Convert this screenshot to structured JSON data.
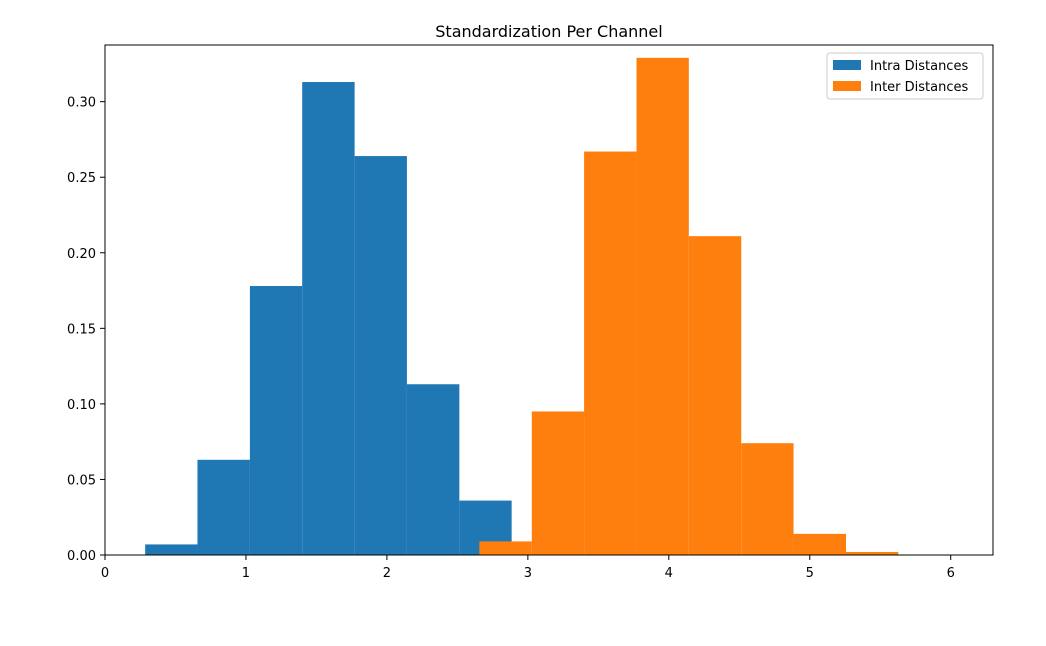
{
  "chart_data": {
    "type": "bar",
    "title": "Standardization Per Channel",
    "xlabel": "",
    "ylabel": "",
    "xlim": [
      0,
      6.3
    ],
    "ylim": [
      0,
      0.3375
    ],
    "xticks": [
      0,
      1,
      2,
      3,
      4,
      5,
      6
    ],
    "yticks": [
      0.0,
      0.05,
      0.1,
      0.15,
      0.2,
      0.25,
      0.3
    ],
    "xtick_labels": [
      "0",
      "1",
      "2",
      "3",
      "4",
      "5",
      "6"
    ],
    "ytick_labels": [
      "0.00",
      "0.05",
      "0.10",
      "0.15",
      "0.20",
      "0.25",
      "0.30"
    ],
    "grid": false,
    "legend": {
      "position": "top-right"
    },
    "series": [
      {
        "name": "Intra Distances",
        "color": "#1f77b4",
        "bin_edges": [
          0.285,
          0.656,
          1.028,
          1.399,
          1.771,
          2.142,
          2.514,
          2.885
        ],
        "values": [
          0.007,
          0.063,
          0.178,
          0.313,
          0.264,
          0.113,
          0.036
        ]
      },
      {
        "name": "Inter Distances",
        "color": "#ff7f0e",
        "bin_edges": [
          2.656,
          3.028,
          3.399,
          3.771,
          4.142,
          4.514,
          4.885,
          5.257,
          5.628
        ],
        "values": [
          0.009,
          0.095,
          0.267,
          0.329,
          0.211,
          0.074,
          0.014,
          0.002
        ]
      }
    ]
  }
}
